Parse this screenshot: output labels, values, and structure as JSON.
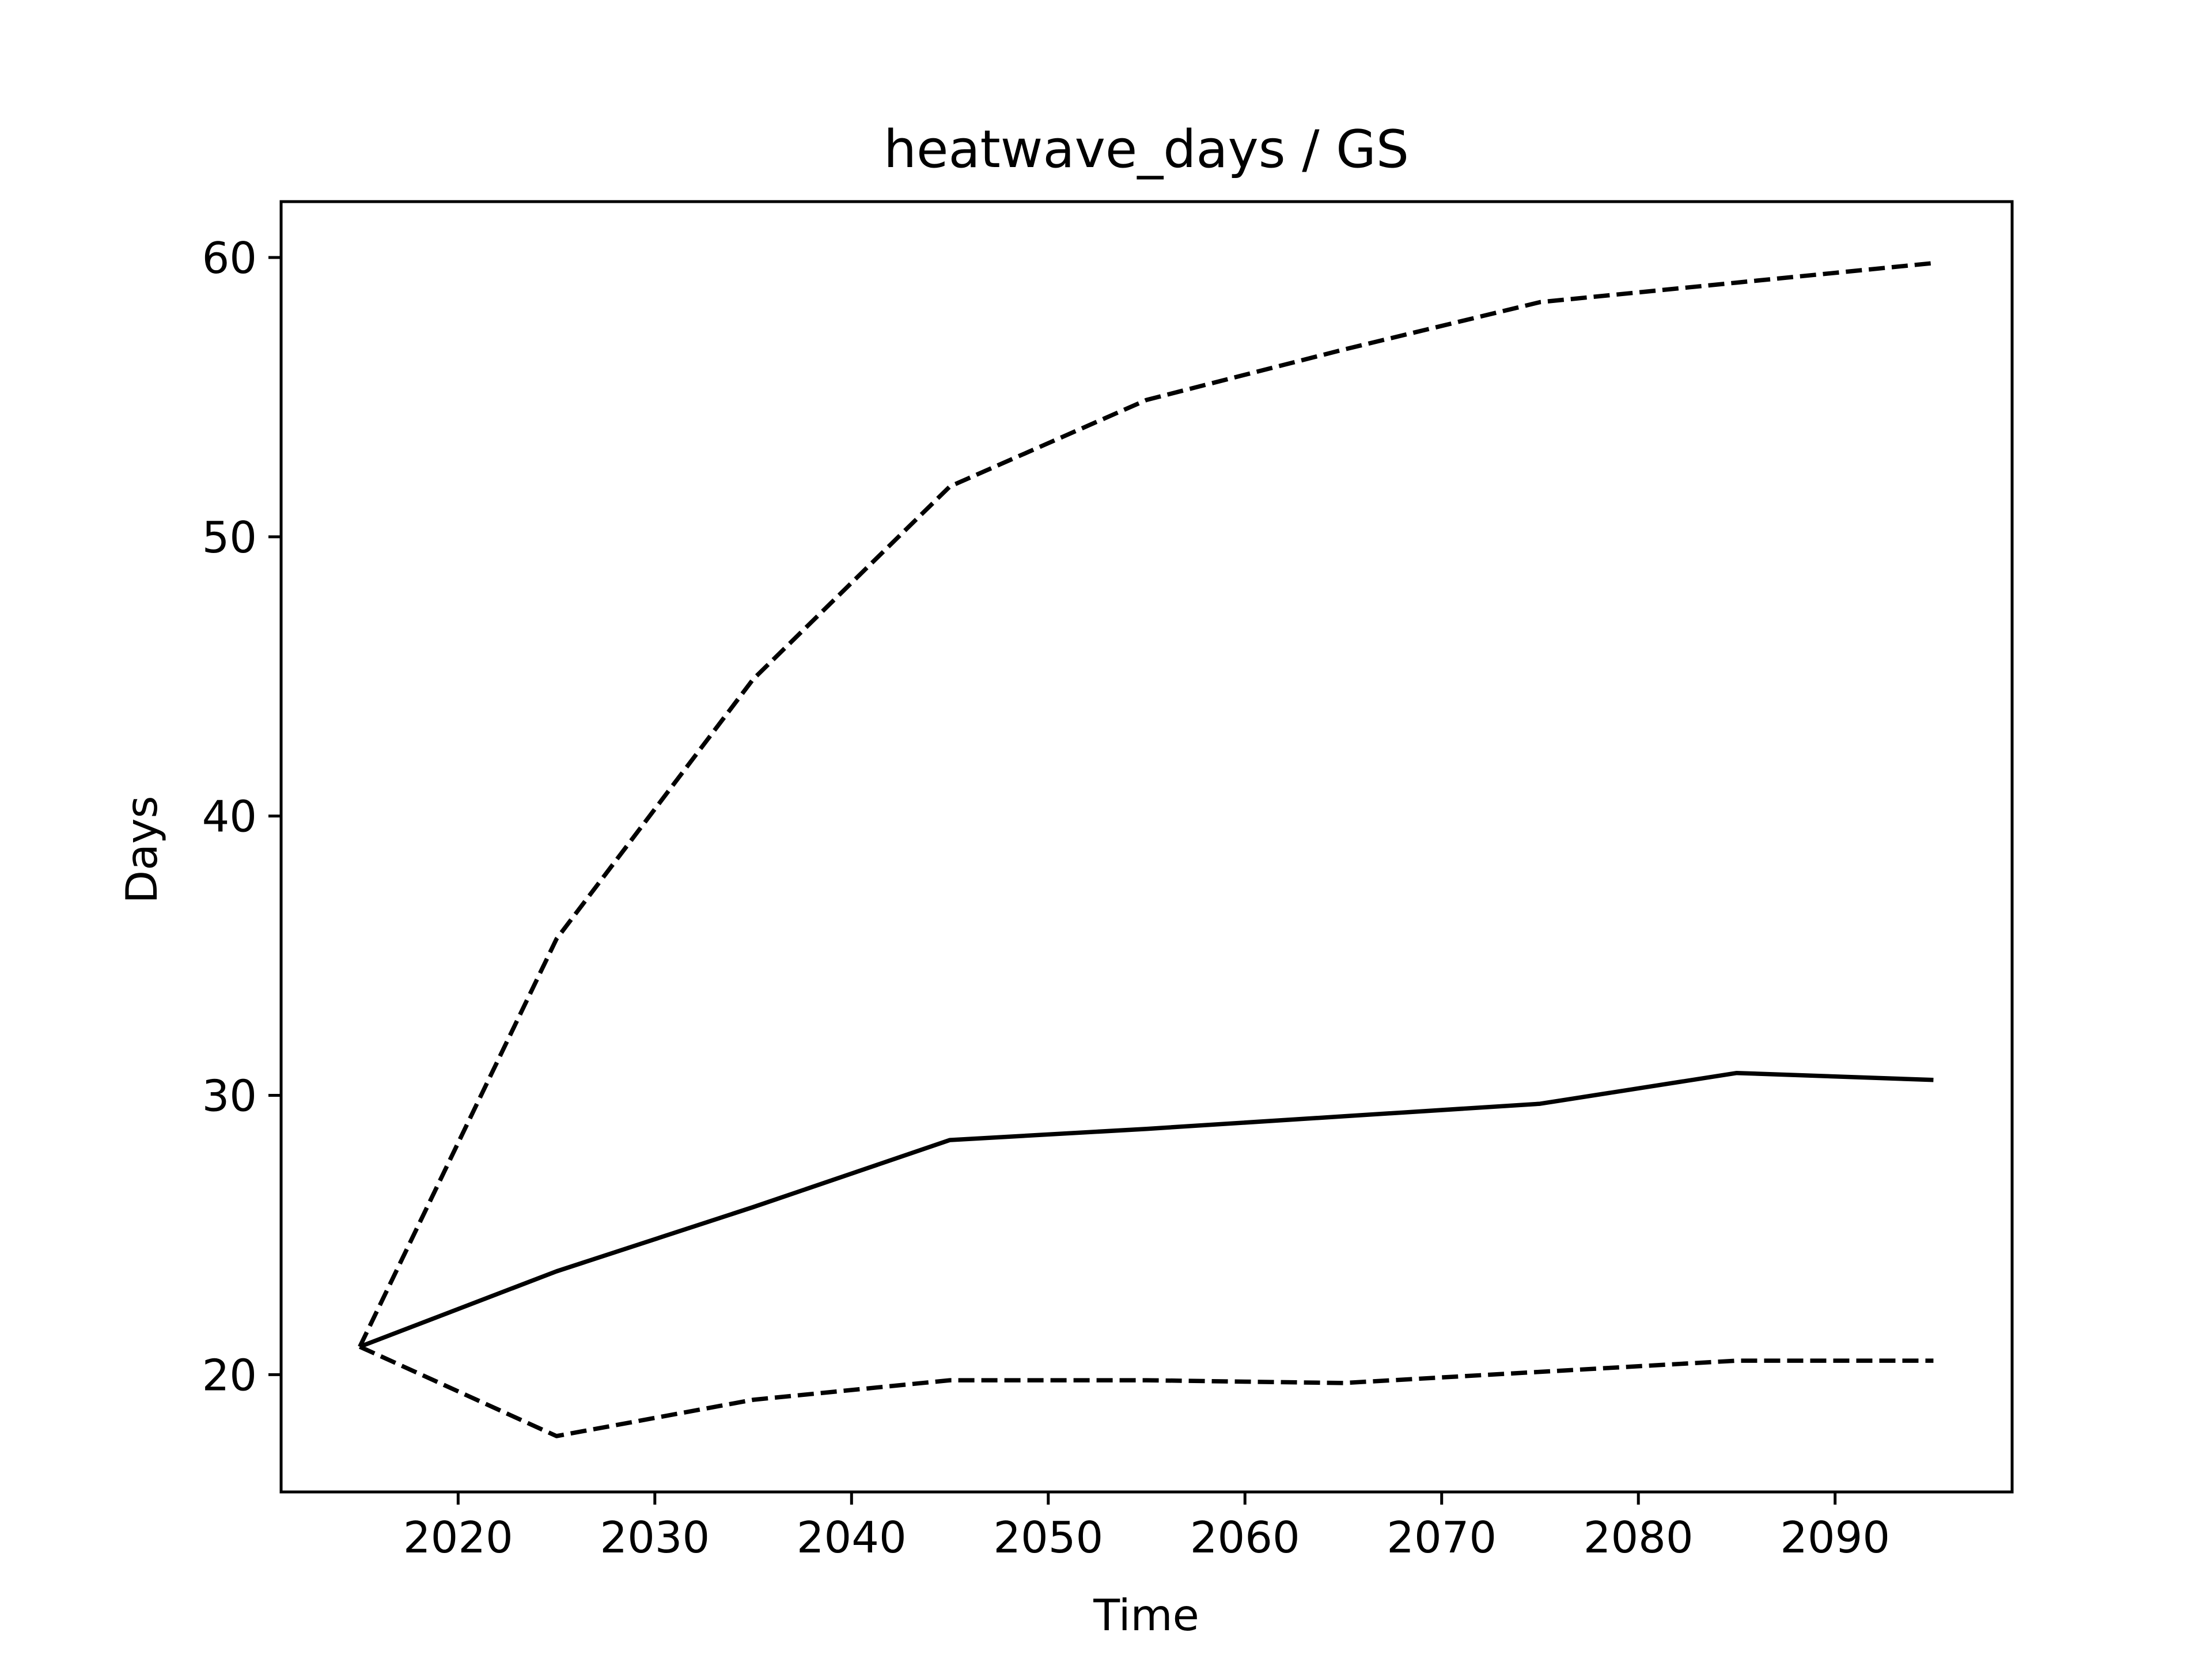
{
  "chart_data": {
    "type": "line",
    "title": "heatwave_days / GS",
    "xlabel": "Time",
    "ylabel": "Days",
    "xlim": [
      2011,
      2099
    ],
    "ylim": [
      15.8,
      62
    ],
    "xticks": [
      2020,
      2030,
      2040,
      2050,
      2060,
      2070,
      2080,
      2090
    ],
    "yticks": [
      20,
      30,
      40,
      50,
      60
    ],
    "grid": false,
    "legend": "none",
    "x": [
      2015,
      2025,
      2035,
      2045,
      2055,
      2065,
      2075,
      2085,
      2095
    ],
    "series": [
      {
        "style": "solid",
        "color": "#000000",
        "values": [
          21.0,
          23.7,
          26.0,
          28.4,
          28.8,
          29.25,
          29.7,
          30.8,
          30.55
        ]
      },
      {
        "style": "dashed",
        "color": "#000000",
        "values": [
          21.0,
          35.6,
          44.9,
          51.8,
          54.9,
          56.7,
          58.4,
          59.1,
          59.8
        ]
      },
      {
        "style": "dashed",
        "color": "#000000",
        "values": [
          21.0,
          17.8,
          19.1,
          19.8,
          19.8,
          19.7,
          20.1,
          20.5,
          20.5
        ]
      }
    ]
  }
}
